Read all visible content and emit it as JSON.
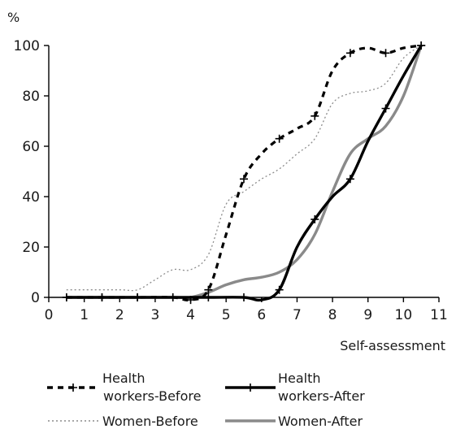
{
  "chart_data": {
    "type": "line",
    "xlabel": "Self-assessment",
    "ylabel": "%",
    "xlim": [
      0,
      11
    ],
    "ylim": [
      0,
      100
    ],
    "x_ticks": [
      "0",
      "1",
      "2",
      "3",
      "4",
      "5",
      "6",
      "7",
      "8",
      "9",
      "10",
      "11"
    ],
    "y_ticks": [
      "0",
      "20",
      "40",
      "60",
      "80",
      "100"
    ],
    "grid": false,
    "legend_position": "bottom",
    "series": [
      {
        "name": "Health workers-Before",
        "style": "dashed-black-with-plus-markers",
        "color": "#000000",
        "x": [
          0.5,
          1.5,
          2.5,
          3.5,
          4,
          4.5,
          5,
          5.5,
          6,
          6.5,
          7,
          7.5,
          8,
          8.5,
          9,
          9.5,
          10,
          10.5
        ],
        "y": [
          0,
          0,
          0,
          0,
          -1,
          3,
          25,
          47,
          57,
          63,
          67,
          72,
          90,
          97,
          99,
          97,
          99,
          100
        ],
        "markers_at": [
          0.5,
          1.5,
          2.5,
          3.5,
          4,
          4.5,
          5.5,
          6.5,
          7.5,
          8.5,
          9.5,
          10.5
        ]
      },
      {
        "name": "Health workers-After",
        "style": "solid-black-with-plus-markers",
        "color": "#000000",
        "x": [
          0.5,
          1.5,
          2.5,
          3.5,
          4.5,
          5.5,
          6,
          6.5,
          7,
          7.5,
          8,
          8.5,
          9,
          9.5,
          10,
          10.5
        ],
        "y": [
          0,
          0,
          0,
          0,
          0,
          0,
          -1,
          3,
          20,
          31,
          40,
          47,
          62,
          75,
          88,
          100
        ],
        "markers_at": [
          0.5,
          1.5,
          2.5,
          3.5,
          4.5,
          5.5,
          6.5,
          7.5,
          8.5,
          9.5,
          10.5
        ]
      },
      {
        "name": "Women-Before",
        "style": "dotted-gray",
        "color": "#8c8c8c",
        "x": [
          0.5,
          1,
          2,
          2.5,
          3,
          3.5,
          4,
          4.5,
          5,
          5.5,
          6,
          6.5,
          7,
          7.5,
          8,
          8.5,
          9,
          9.5,
          10,
          10.5
        ],
        "y": [
          3,
          3,
          3,
          3,
          7,
          11,
          11,
          17,
          37,
          42,
          47,
          51,
          57,
          63,
          77,
          81,
          82,
          85,
          95,
          100
        ]
      },
      {
        "name": "Women-After",
        "style": "solid-gray",
        "color": "#8a8a8a",
        "x": [
          0.5,
          1.5,
          2.5,
          3.5,
          4,
          4.5,
          5,
          5.5,
          6,
          6.5,
          7,
          7.5,
          8,
          8.5,
          9,
          9.5,
          10,
          10.5
        ],
        "y": [
          0,
          0,
          0,
          0,
          0,
          2,
          5,
          7,
          8,
          10,
          15,
          25,
          42,
          57,
          63,
          68,
          80,
          100
        ]
      }
    ]
  }
}
